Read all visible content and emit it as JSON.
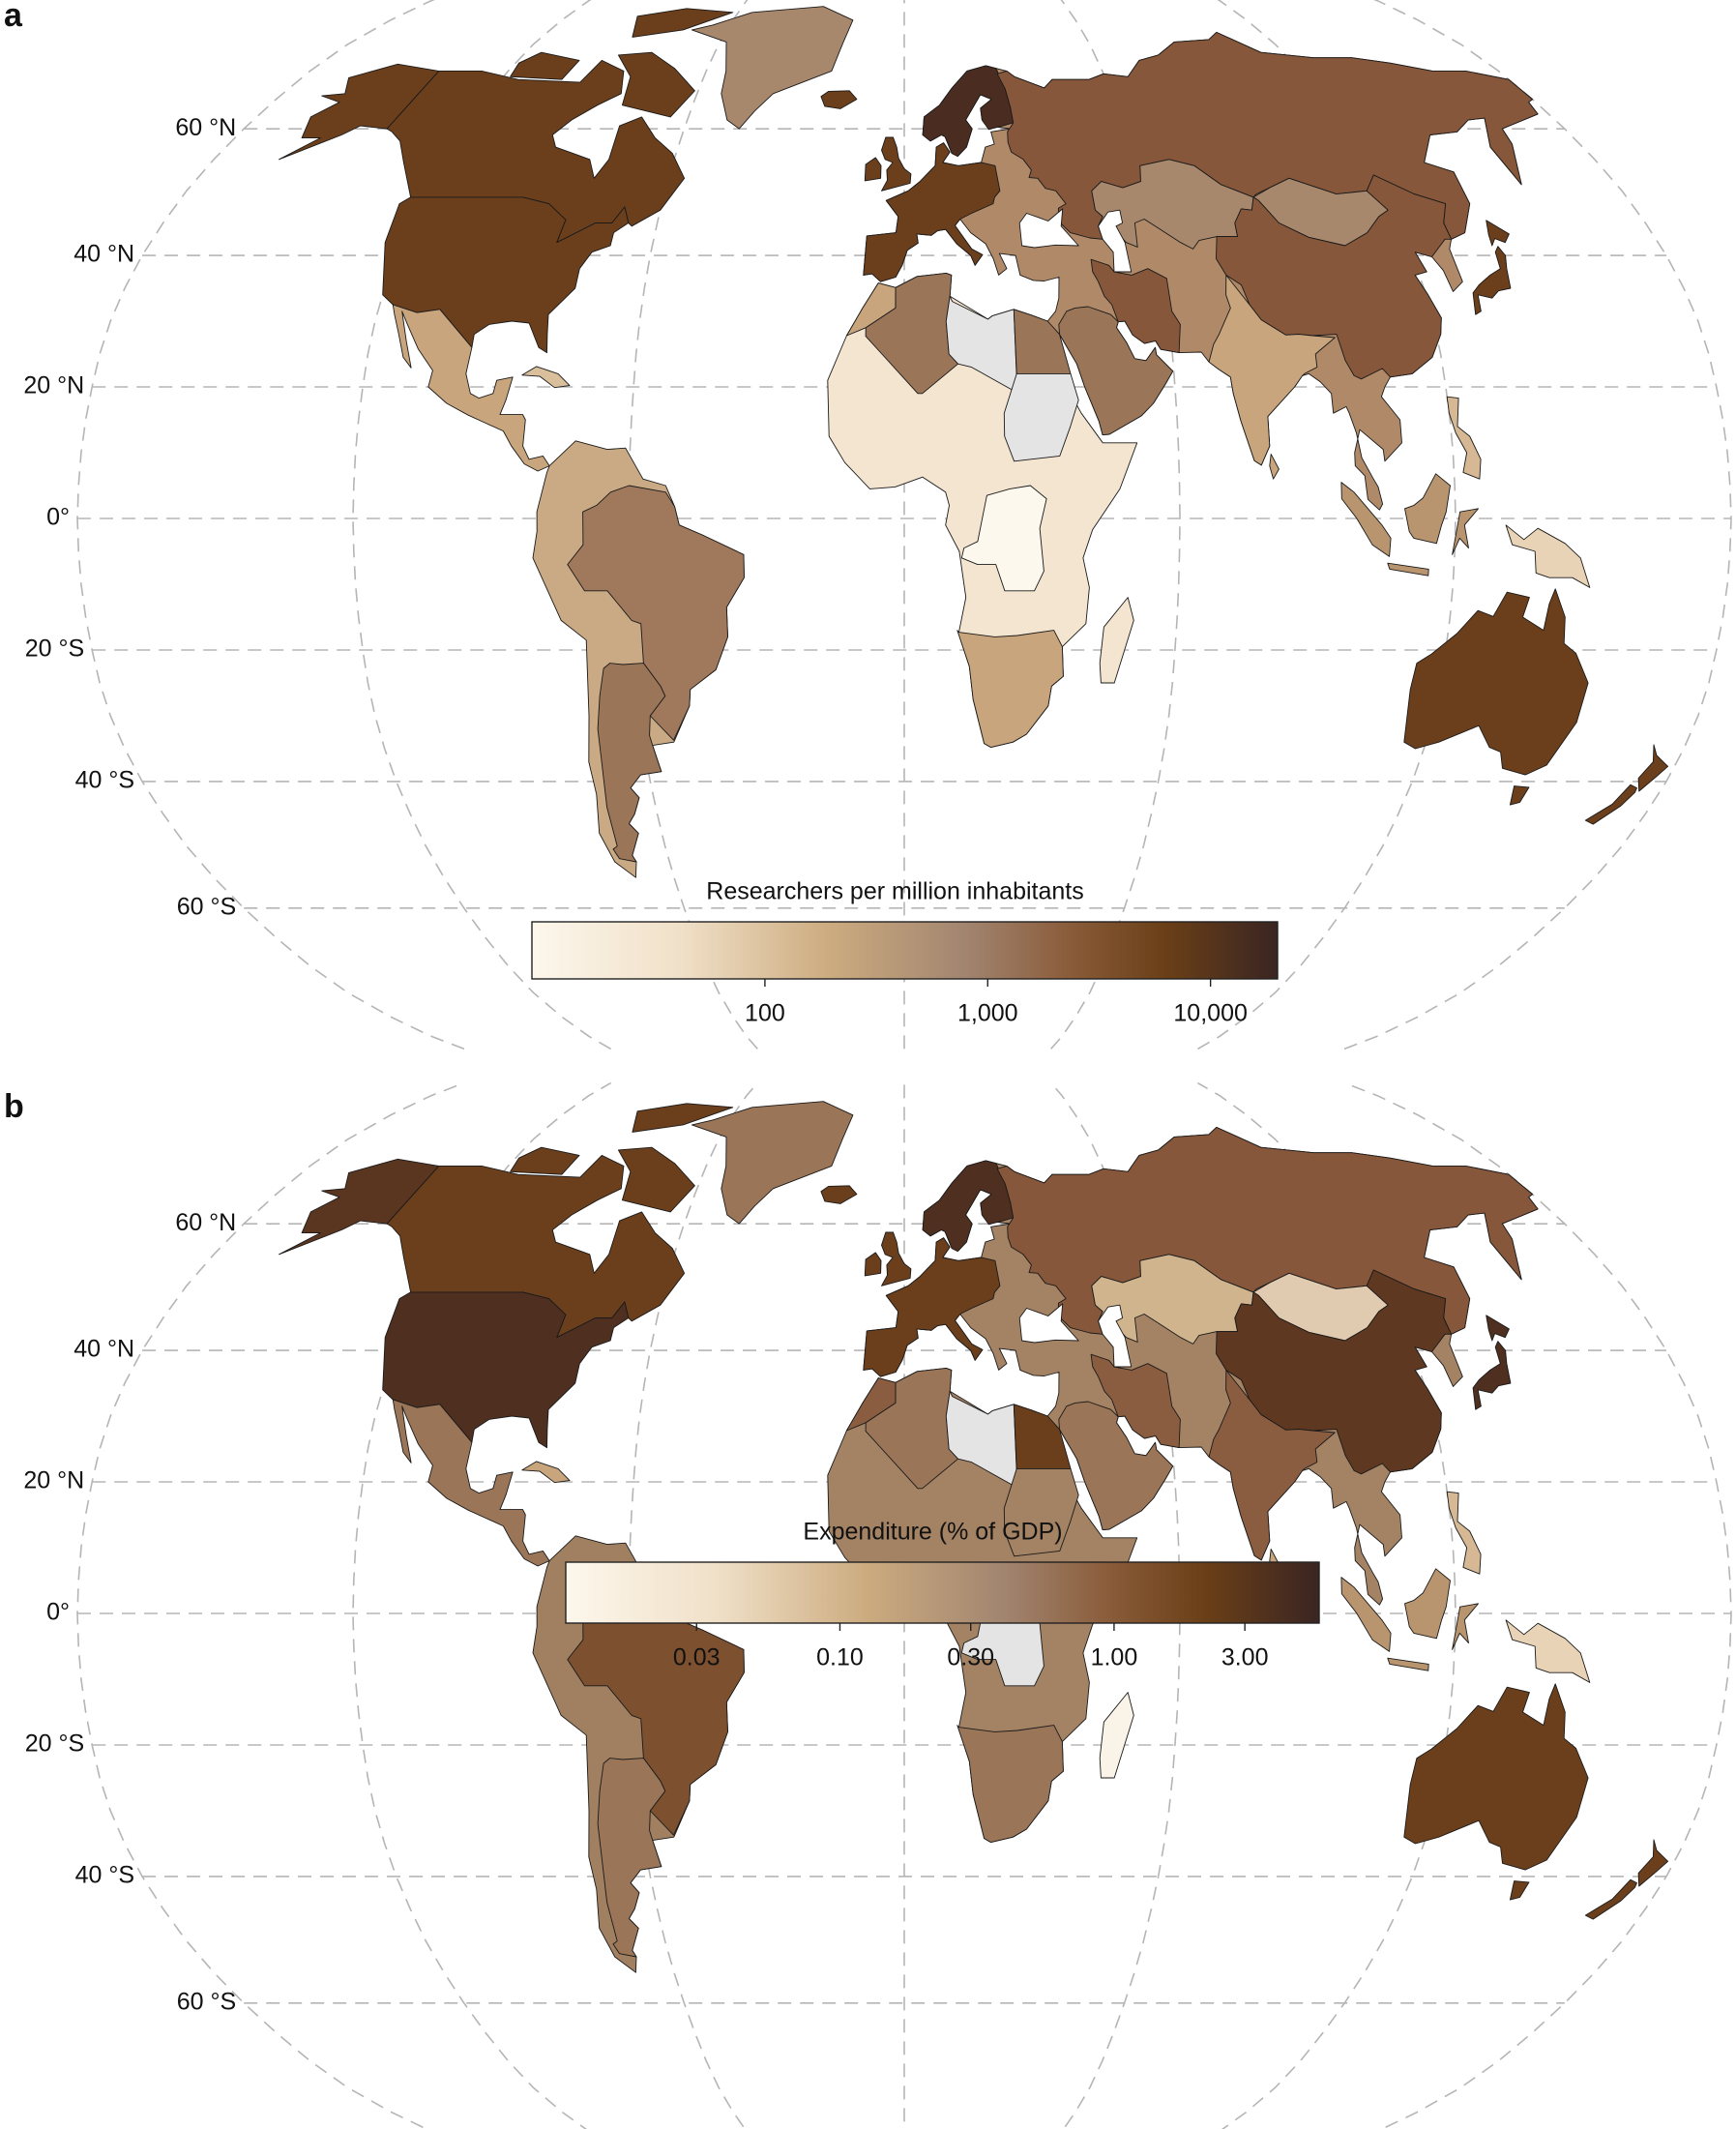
{
  "panels": [
    {
      "label": "a",
      "latitudes": [
        {
          "value": 60,
          "label": "60 °N"
        },
        {
          "value": 40,
          "label": "40 °N"
        },
        {
          "value": 20,
          "label": "20 °N"
        },
        {
          "value": 0,
          "label": "0°"
        },
        {
          "value": -20,
          "label": "20 °S"
        },
        {
          "value": -40,
          "label": "40 °S"
        },
        {
          "value": -60,
          "label": "60 °S"
        }
      ],
      "colorbar": {
        "title": "Researchers per million inhabitants",
        "log": true,
        "range": [
          9,
          20000
        ],
        "ticks": [
          100,
          {
            "value": 1000,
            "label": "1,000"
          },
          {
            "value": 10000,
            "label": "10,000"
          }
        ]
      }
    },
    {
      "label": "b",
      "latitudes": [
        {
          "value": 60,
          "label": "60 °N"
        },
        {
          "value": 40,
          "label": "40 °N"
        },
        {
          "value": 20,
          "label": "20 °N"
        },
        {
          "value": 0,
          "label": "0°"
        },
        {
          "value": -20,
          "label": "20 °S"
        },
        {
          "value": -40,
          "label": "40 °S"
        },
        {
          "value": -60,
          "label": "60 °S"
        }
      ],
      "colorbar": {
        "title": "Expenditure (% of GDP)",
        "log": true,
        "range": [
          0.01,
          5.6
        ],
        "ticks": [
          0.03,
          {
            "value": 0.1,
            "label": "0.10"
          },
          {
            "value": 0.3,
            "label": "0.30"
          },
          {
            "value": 1,
            "label": "1.00"
          },
          {
            "value": 3,
            "label": "3.00"
          }
        ]
      }
    }
  ]
}
